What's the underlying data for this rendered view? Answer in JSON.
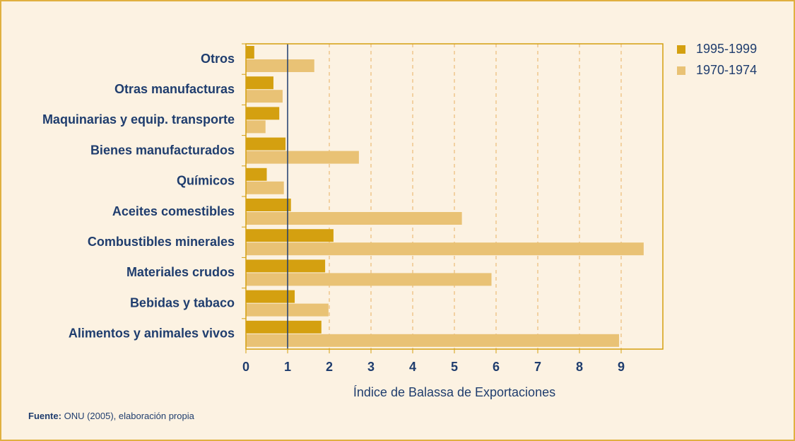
{
  "chart_data": {
    "type": "hbar",
    "categories": [
      "Otros",
      "Otras manufacturas",
      "Maquinarias y equip. transporte",
      "Bienes manufacturados",
      "Químicos",
      "Aceites comestibles",
      "Combustibles minerales",
      "Materiales crudos",
      "Bebidas y tabaco",
      "Alimentos y animales vivos"
    ],
    "series": [
      {
        "name": "1995-1999",
        "color": "#d4a010",
        "values": [
          0.2,
          0.66,
          0.8,
          0.95,
          0.5,
          1.08,
          2.1,
          1.9,
          1.17,
          1.81
        ]
      },
      {
        "name": "1970-1974",
        "color": "#e9c275",
        "values": [
          1.64,
          0.88,
          0.47,
          2.71,
          0.91,
          5.18,
          9.54,
          5.89,
          1.98,
          8.95
        ]
      }
    ],
    "xlim": [
      0,
      10
    ],
    "xticks": [
      0,
      1,
      2,
      3,
      4,
      5,
      6,
      7,
      8,
      9
    ],
    "reference_line": 1,
    "xlabel": "Índice de Balassa de Exportaciones",
    "grid": true,
    "legend": "right",
    "source_label": "Fuente:",
    "source_text": "ONU (2005), elaboración propia"
  }
}
